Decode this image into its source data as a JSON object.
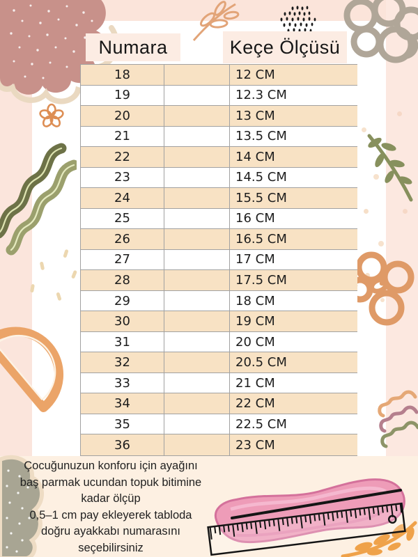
{
  "table": {
    "columns": [
      "Numara",
      "Keçe Ölçüsü"
    ],
    "rows": [
      {
        "numara": "18",
        "olcu": "12 CM"
      },
      {
        "numara": "19",
        "olcu": "12.3 CM"
      },
      {
        "numara": "20",
        "olcu": "13 CM"
      },
      {
        "numara": "21",
        "olcu": "13.5 CM"
      },
      {
        "numara": "22",
        "olcu": "14 CM"
      },
      {
        "numara": "23",
        "olcu": "14.5 CM"
      },
      {
        "numara": "24",
        "olcu": "15.5 CM"
      },
      {
        "numara": "25",
        "olcu": "16 CM"
      },
      {
        "numara": "26",
        "olcu": "16.5 CM"
      },
      {
        "numara": "27",
        "olcu": "17 CM"
      },
      {
        "numara": "28",
        "olcu": "17.5 CM"
      },
      {
        "numara": "29",
        "olcu": "18 CM"
      },
      {
        "numara": "30",
        "olcu": "19 CM"
      },
      {
        "numara": "31",
        "olcu": "20 CM"
      },
      {
        "numara": "32",
        "olcu": "20.5 CM"
      },
      {
        "numara": "33",
        "olcu": "21 CM"
      },
      {
        "numara": "34",
        "olcu": "22 CM"
      },
      {
        "numara": "35",
        "olcu": "22.5 CM"
      },
      {
        "numara": "36",
        "olcu": "23 CM"
      }
    ]
  },
  "footer": {
    "lines": [
      "Çocuğunuzun konforu için ayağını",
      "baş parmak ucundan topuk bitimine",
      "kadar ölçüp",
      "0,5–1 cm pay ekleyerek tabloda",
      "doğru ayakkabı numarasını",
      "seçebilirsiniz"
    ]
  },
  "colors": {
    "row_peach": "#f8e2c4",
    "header_box_bg": "#fcece3",
    "frame_pink": "#fbe5dc",
    "bottom_cream": "#fdf0e2",
    "table_border": "#a1a1a1",
    "insole_pink": "#ee9cb8",
    "blob_rose": "#c8918a",
    "blob_sage": "#a8a593",
    "doodle_orange": "#e2a478",
    "doodle_olive": "#87905d",
    "doodle_taupe": "#b0a698"
  }
}
